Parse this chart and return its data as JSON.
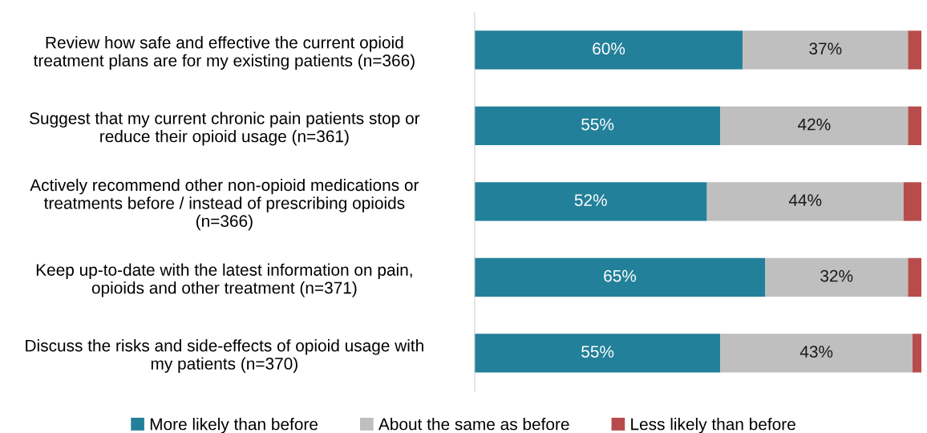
{
  "chart_data": {
    "type": "bar",
    "orientation": "horizontal",
    "stacked": true,
    "categories": [
      "Review how safe and effective the current opioid\ntreatment plans are for my existing patients (n=366)",
      "Suggest that my current chronic pain patients stop or\nreduce their opioid usage (n=361)",
      "Actively recommend other non-opioid medications or\ntreatments before / instead of prescribing opioids\n(n=366)",
      "Keep up-to-date with the latest information on pain,\nopioids and other treatment (n=371)",
      "Discuss the risks and side-effects of opioid usage with\nmy patients (n=370)"
    ],
    "series": [
      {
        "name": "More likely than before",
        "color": "#23809a",
        "values": [
          60,
          55,
          52,
          65,
          55
        ],
        "value_labels": [
          "60%",
          "55%",
          "52%",
          "65%",
          "55%"
        ]
      },
      {
        "name": "About the same as before",
        "color": "#bfbfbf",
        "values": [
          37,
          42,
          44,
          32,
          43
        ],
        "value_labels": [
          "37%",
          "42%",
          "44%",
          "32%",
          "43%"
        ]
      },
      {
        "name": "Less likely than before",
        "color": "#b84c4c",
        "values": [
          3,
          3,
          4,
          3,
          2
        ],
        "value_labels": [
          null,
          null,
          null,
          null,
          null
        ]
      }
    ],
    "xlim": [
      0,
      100
    ],
    "tick_labels": "y",
    "grid": false,
    "legend": "bottom"
  }
}
